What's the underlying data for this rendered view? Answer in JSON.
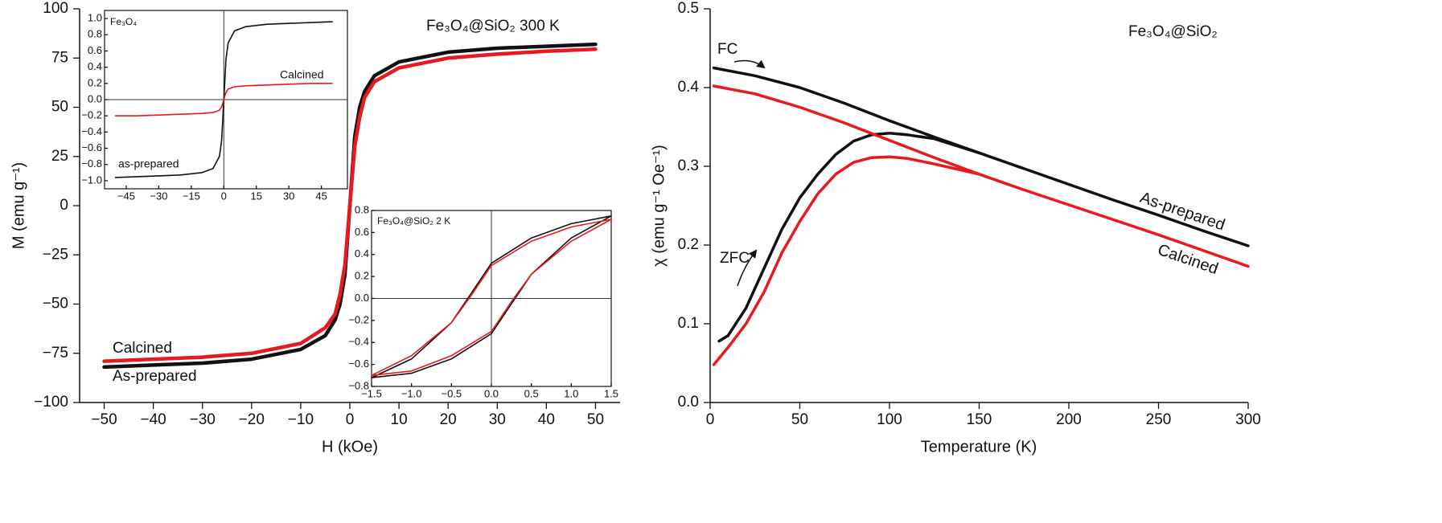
{
  "chart_data": [
    {
      "type": "line",
      "x_label": "H (kOe)",
      "y_label": "M (emu g⁻¹)",
      "xlim": [
        -55,
        55
      ],
      "ylim": [
        -100,
        100
      ],
      "xticks": [
        {
          "value": -50,
          "label": "−50"
        },
        {
          "value": -40,
          "label": "−40"
        },
        {
          "value": -30,
          "label": "−30"
        },
        {
          "value": -20,
          "label": "−20"
        },
        {
          "value": -10,
          "label": "−10"
        },
        0,
        10,
        20,
        30,
        40,
        50
      ],
      "yticks": [
        {
          "value": -100,
          "label": "−100"
        },
        {
          "value": -75,
          "label": "−75"
        },
        {
          "value": -50,
          "label": "−50"
        },
        {
          "value": -25,
          "label": "−25"
        },
        0,
        25,
        50,
        75,
        100
      ],
      "x": [
        -50,
        -40,
        -30,
        -20,
        -10,
        -5,
        -3,
        -2,
        -1,
        0,
        1,
        2,
        3,
        5,
        10,
        20,
        30,
        40,
        50
      ],
      "series": [
        {
          "color": "#111111",
          "values": [
            -82,
            -81,
            -80,
            -78,
            -73,
            -66,
            -58,
            -50,
            -35,
            0,
            35,
            50,
            58,
            66,
            73,
            78,
            80,
            81,
            82
          ]
        },
        {
          "color": "#e8191f",
          "values": [
            -79,
            -78,
            -77,
            -75,
            -70,
            -62,
            -55,
            -45,
            -30,
            0,
            30,
            45,
            55,
            63,
            70,
            75,
            77,
            78.5,
            79.5
          ]
        }
      ],
      "annotations": [
        "Calcined",
        "As-prepared",
        "Fe₃O₄@SiO₂ 300 K"
      ]
    },
    {
      "type": "line",
      "xlim": [
        -55,
        57
      ],
      "ylim": [
        -1.1,
        1.1
      ],
      "xticks": [
        {
          "value": -45,
          "label": "−45"
        },
        {
          "value": -30,
          "label": "−30"
        },
        {
          "value": -15,
          "label": "−15"
        },
        0,
        15,
        30,
        45
      ],
      "yticks": [
        {
          "value": -1,
          "label": "−1.0"
        },
        {
          "value": -0.8,
          "label": "−0.8"
        },
        {
          "value": -0.6,
          "label": "−0.6"
        },
        {
          "value": -0.4,
          "label": "−0.4"
        },
        {
          "value": -0.2,
          "label": "−0.2"
        },
        {
          "value": 0,
          "label": "0.0"
        },
        0.2,
        0.4,
        0.6,
        0.8,
        {
          "value": 1,
          "label": "1.0"
        }
      ],
      "x": [
        -50,
        -40,
        -30,
        -20,
        -10,
        -5,
        -2,
        -1,
        0,
        1,
        2,
        5,
        10,
        20,
        30,
        40,
        50
      ],
      "series": [
        {
          "color": "#111111",
          "values": [
            -0.96,
            -0.95,
            -0.94,
            -0.93,
            -0.9,
            -0.85,
            -0.7,
            -0.5,
            0,
            0.5,
            0.7,
            0.85,
            0.9,
            0.93,
            0.94,
            0.95,
            0.96
          ]
        },
        {
          "color": "#e8191f",
          "values": [
            -0.2,
            -0.2,
            -0.19,
            -0.18,
            -0.17,
            -0.16,
            -0.13,
            -0.09,
            0,
            0.09,
            0.13,
            0.16,
            0.17,
            0.18,
            0.19,
            0.2,
            0.2
          ]
        }
      ],
      "annotations": [
        "Fe₃O₄",
        "Calcined",
        "as-prepared"
      ]
    },
    {
      "type": "line",
      "xlim": [
        -1.5,
        1.5
      ],
      "ylim": [
        -0.8,
        0.8
      ],
      "xticks": [
        {
          "value": -1.5,
          "label": "−1.5"
        },
        {
          "value": -1,
          "label": "−1.0"
        },
        {
          "value": -0.5,
          "label": "−0.5"
        },
        {
          "value": 0,
          "label": "0.0"
        },
        0.5,
        {
          "value": 1,
          "label": "1.0"
        },
        1.5
      ],
      "yticks": [
        {
          "value": -0.8,
          "label": "−0.8"
        },
        {
          "value": -0.6,
          "label": "−0.6"
        },
        {
          "value": -0.4,
          "label": "−0.4"
        },
        {
          "value": -0.2,
          "label": "−0.2"
        },
        {
          "value": 0,
          "label": "0.0"
        },
        0.2,
        0.4,
        0.6,
        0.8
      ],
      "x": [
        1.5,
        1,
        0.5,
        0,
        -0.25,
        -0.5,
        -1,
        -1.5,
        -1,
        -0.5,
        0,
        0.25,
        0.5,
        1,
        1.5
      ],
      "series": [
        {
          "color": "#111111",
          "values": [
            0.75,
            0.68,
            0.55,
            0.32,
            0.05,
            -0.22,
            -0.55,
            -0.72,
            -0.68,
            -0.55,
            -0.32,
            -0.05,
            0.22,
            0.55,
            0.75
          ]
        },
        {
          "color": "#e8191f",
          "values": [
            0.72,
            0.65,
            0.52,
            0.3,
            0.03,
            -0.22,
            -0.52,
            -0.7,
            -0.66,
            -0.52,
            -0.3,
            -0.03,
            0.22,
            0.52,
            0.72
          ]
        }
      ],
      "annotations": [
        "Fe₃O₄@SiO₂ 2 K"
      ]
    },
    {
      "type": "line",
      "x_label": "Temperature (K)",
      "y_label": "χ (emu g⁻¹ Oe⁻¹)",
      "xlim": [
        0,
        300
      ],
      "ylim": [
        0,
        0.5
      ],
      "xticks": [
        0,
        50,
        100,
        150,
        200,
        250,
        300
      ],
      "yticks": [
        {
          "value": 0,
          "label": "0.0"
        },
        0.1,
        0.2,
        0.3,
        0.4,
        0.5
      ],
      "series": [
        {
          "color": "#111111",
          "x": [
            2,
            25,
            50,
            75,
            100,
            125,
            150,
            175,
            200,
            225,
            250,
            275,
            300
          ],
          "values": [
            0.425,
            0.415,
            0.4,
            0.38,
            0.358,
            0.337,
            0.317,
            0.297,
            0.277,
            0.257,
            0.238,
            0.218,
            0.199
          ]
        },
        {
          "color": "#111111",
          "x": [
            5,
            10,
            20,
            30,
            40,
            50,
            60,
            70,
            80,
            90,
            100,
            110,
            125,
            150
          ],
          "values": [
            0.078,
            0.085,
            0.12,
            0.17,
            0.22,
            0.26,
            0.29,
            0.315,
            0.332,
            0.34,
            0.342,
            0.34,
            0.335,
            0.317
          ]
        },
        {
          "color": "#e8191f",
          "x": [
            2,
            25,
            50,
            75,
            100,
            125,
            150,
            175,
            200,
            225,
            250,
            275,
            300
          ],
          "values": [
            0.402,
            0.392,
            0.375,
            0.355,
            0.333,
            0.311,
            0.29,
            0.27,
            0.251,
            0.232,
            0.213,
            0.193,
            0.173
          ]
        },
        {
          "color": "#e8191f",
          "x": [
            2,
            10,
            20,
            30,
            40,
            50,
            60,
            70,
            80,
            90,
            100,
            110,
            125,
            150
          ],
          "values": [
            0.048,
            0.07,
            0.1,
            0.14,
            0.19,
            0.23,
            0.265,
            0.29,
            0.305,
            0.311,
            0.312,
            0.31,
            0.303,
            0.29
          ]
        }
      ],
      "annotations": [
        "Fe₃O₄@SiO₂",
        "FC",
        "ZFC",
        "As-prepared",
        "Calcined"
      ]
    }
  ]
}
